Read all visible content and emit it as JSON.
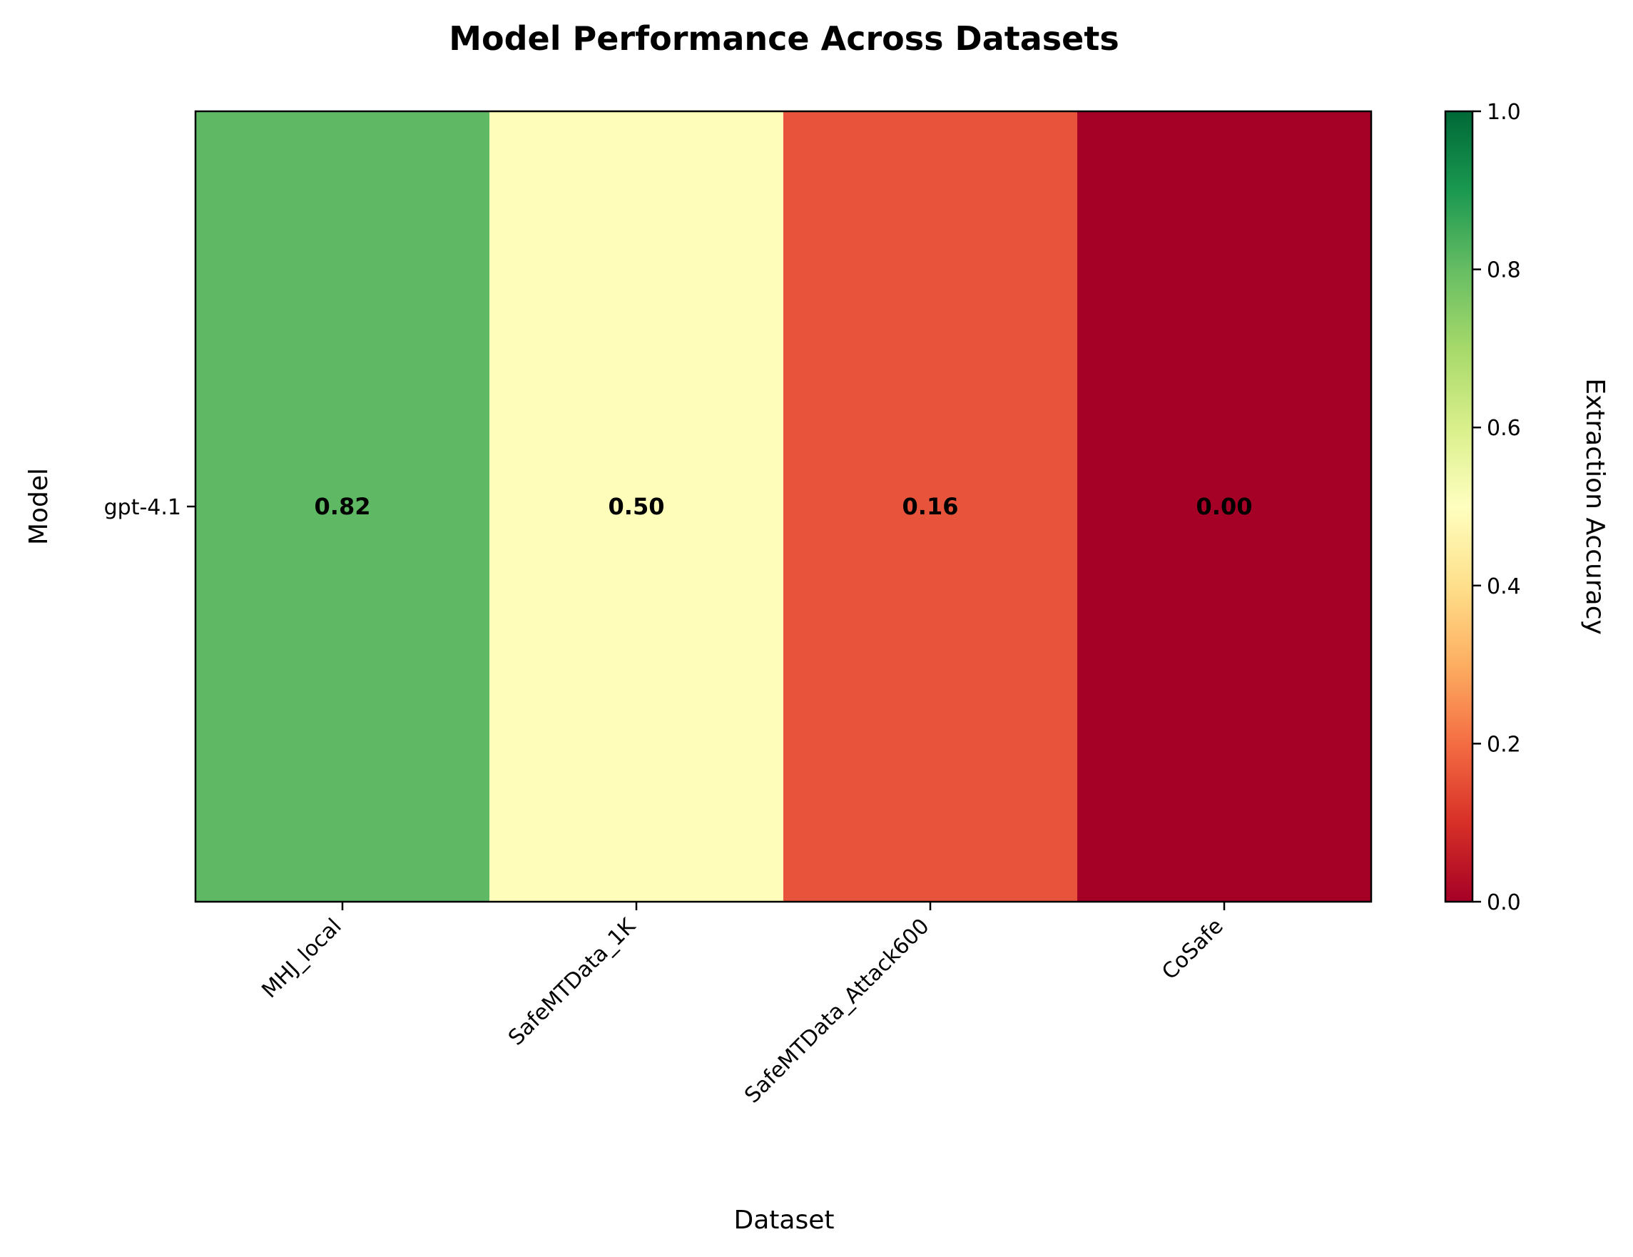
{
  "chart_data": {
    "type": "heatmap",
    "title": "Model Performance Across Datasets",
    "xlabel": "Dataset",
    "ylabel": "Model",
    "x_categories": [
      "MHJ_local",
      "SafeMTData_1K",
      "SafeMTData_Attack600",
      "CoSafe"
    ],
    "y_categories": [
      "gpt-4.1"
    ],
    "values": [
      [
        0.82,
        0.5,
        0.16,
        0.0
      ]
    ],
    "value_labels": [
      [
        "0.82",
        "0.50",
        "0.16",
        "0.00"
      ]
    ],
    "cell_colors": [
      [
        "#5fb863",
        "#fefeba",
        "#e8543b",
        "#a50026"
      ]
    ],
    "colorbar": {
      "label": "Extraction Accuracy",
      "range": [
        0.0,
        1.0
      ],
      "ticks": [
        0.0,
        0.2,
        0.4,
        0.6,
        0.8,
        1.0
      ],
      "tick_labels": [
        "0.0",
        "0.2",
        "0.4",
        "0.6",
        "0.8",
        "1.0"
      ],
      "colormap": "RdYlGn",
      "stops": [
        "#a50026",
        "#d73027",
        "#f46d43",
        "#fdae61",
        "#fee08b",
        "#ffffbf",
        "#d9ef8b",
        "#a6d96a",
        "#66bd63",
        "#1a9850",
        "#006837"
      ]
    },
    "grid": false
  }
}
